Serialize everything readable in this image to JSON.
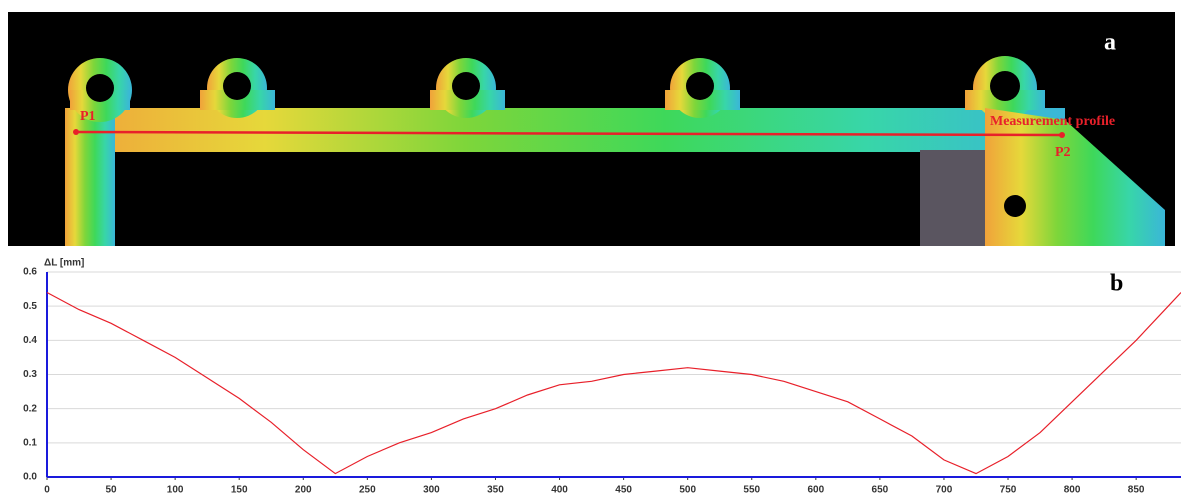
{
  "panel_a": {
    "label": "a",
    "p1": "P1",
    "p2": "P2",
    "profile_label": "Measurement profile"
  },
  "chart_data": {
    "type": "line",
    "panel_label": "b",
    "y_label": "ΔL [mm]",
    "color": "#e8202a",
    "x": [
      0,
      25,
      50,
      75,
      100,
      125,
      150,
      175,
      200,
      225,
      250,
      275,
      300,
      325,
      350,
      375,
      400,
      425,
      450,
      475,
      500,
      525,
      550,
      575,
      600,
      625,
      650,
      675,
      700,
      725,
      750,
      775,
      800,
      825,
      850,
      875,
      885
    ],
    "values": [
      0.54,
      0.49,
      0.45,
      0.4,
      0.35,
      0.29,
      0.23,
      0.16,
      0.08,
      0.01,
      0.06,
      0.1,
      0.13,
      0.17,
      0.2,
      0.24,
      0.27,
      0.28,
      0.3,
      0.31,
      0.32,
      0.31,
      0.3,
      0.28,
      0.25,
      0.22,
      0.17,
      0.12,
      0.05,
      0.01,
      0.06,
      0.13,
      0.22,
      0.31,
      0.4,
      0.5,
      0.54
    ],
    "xlim": [
      0,
      885
    ],
    "ylim": [
      0,
      0.6
    ],
    "xticks": [
      0,
      50,
      100,
      150,
      200,
      250,
      300,
      350,
      400,
      450,
      500,
      550,
      600,
      650,
      700,
      750,
      800,
      850
    ],
    "yticks": [
      {
        "value": 0,
        "label": "0.0"
      },
      0.1,
      0.2,
      0.3,
      0.4,
      0.5,
      0.6
    ],
    "grid": true
  }
}
